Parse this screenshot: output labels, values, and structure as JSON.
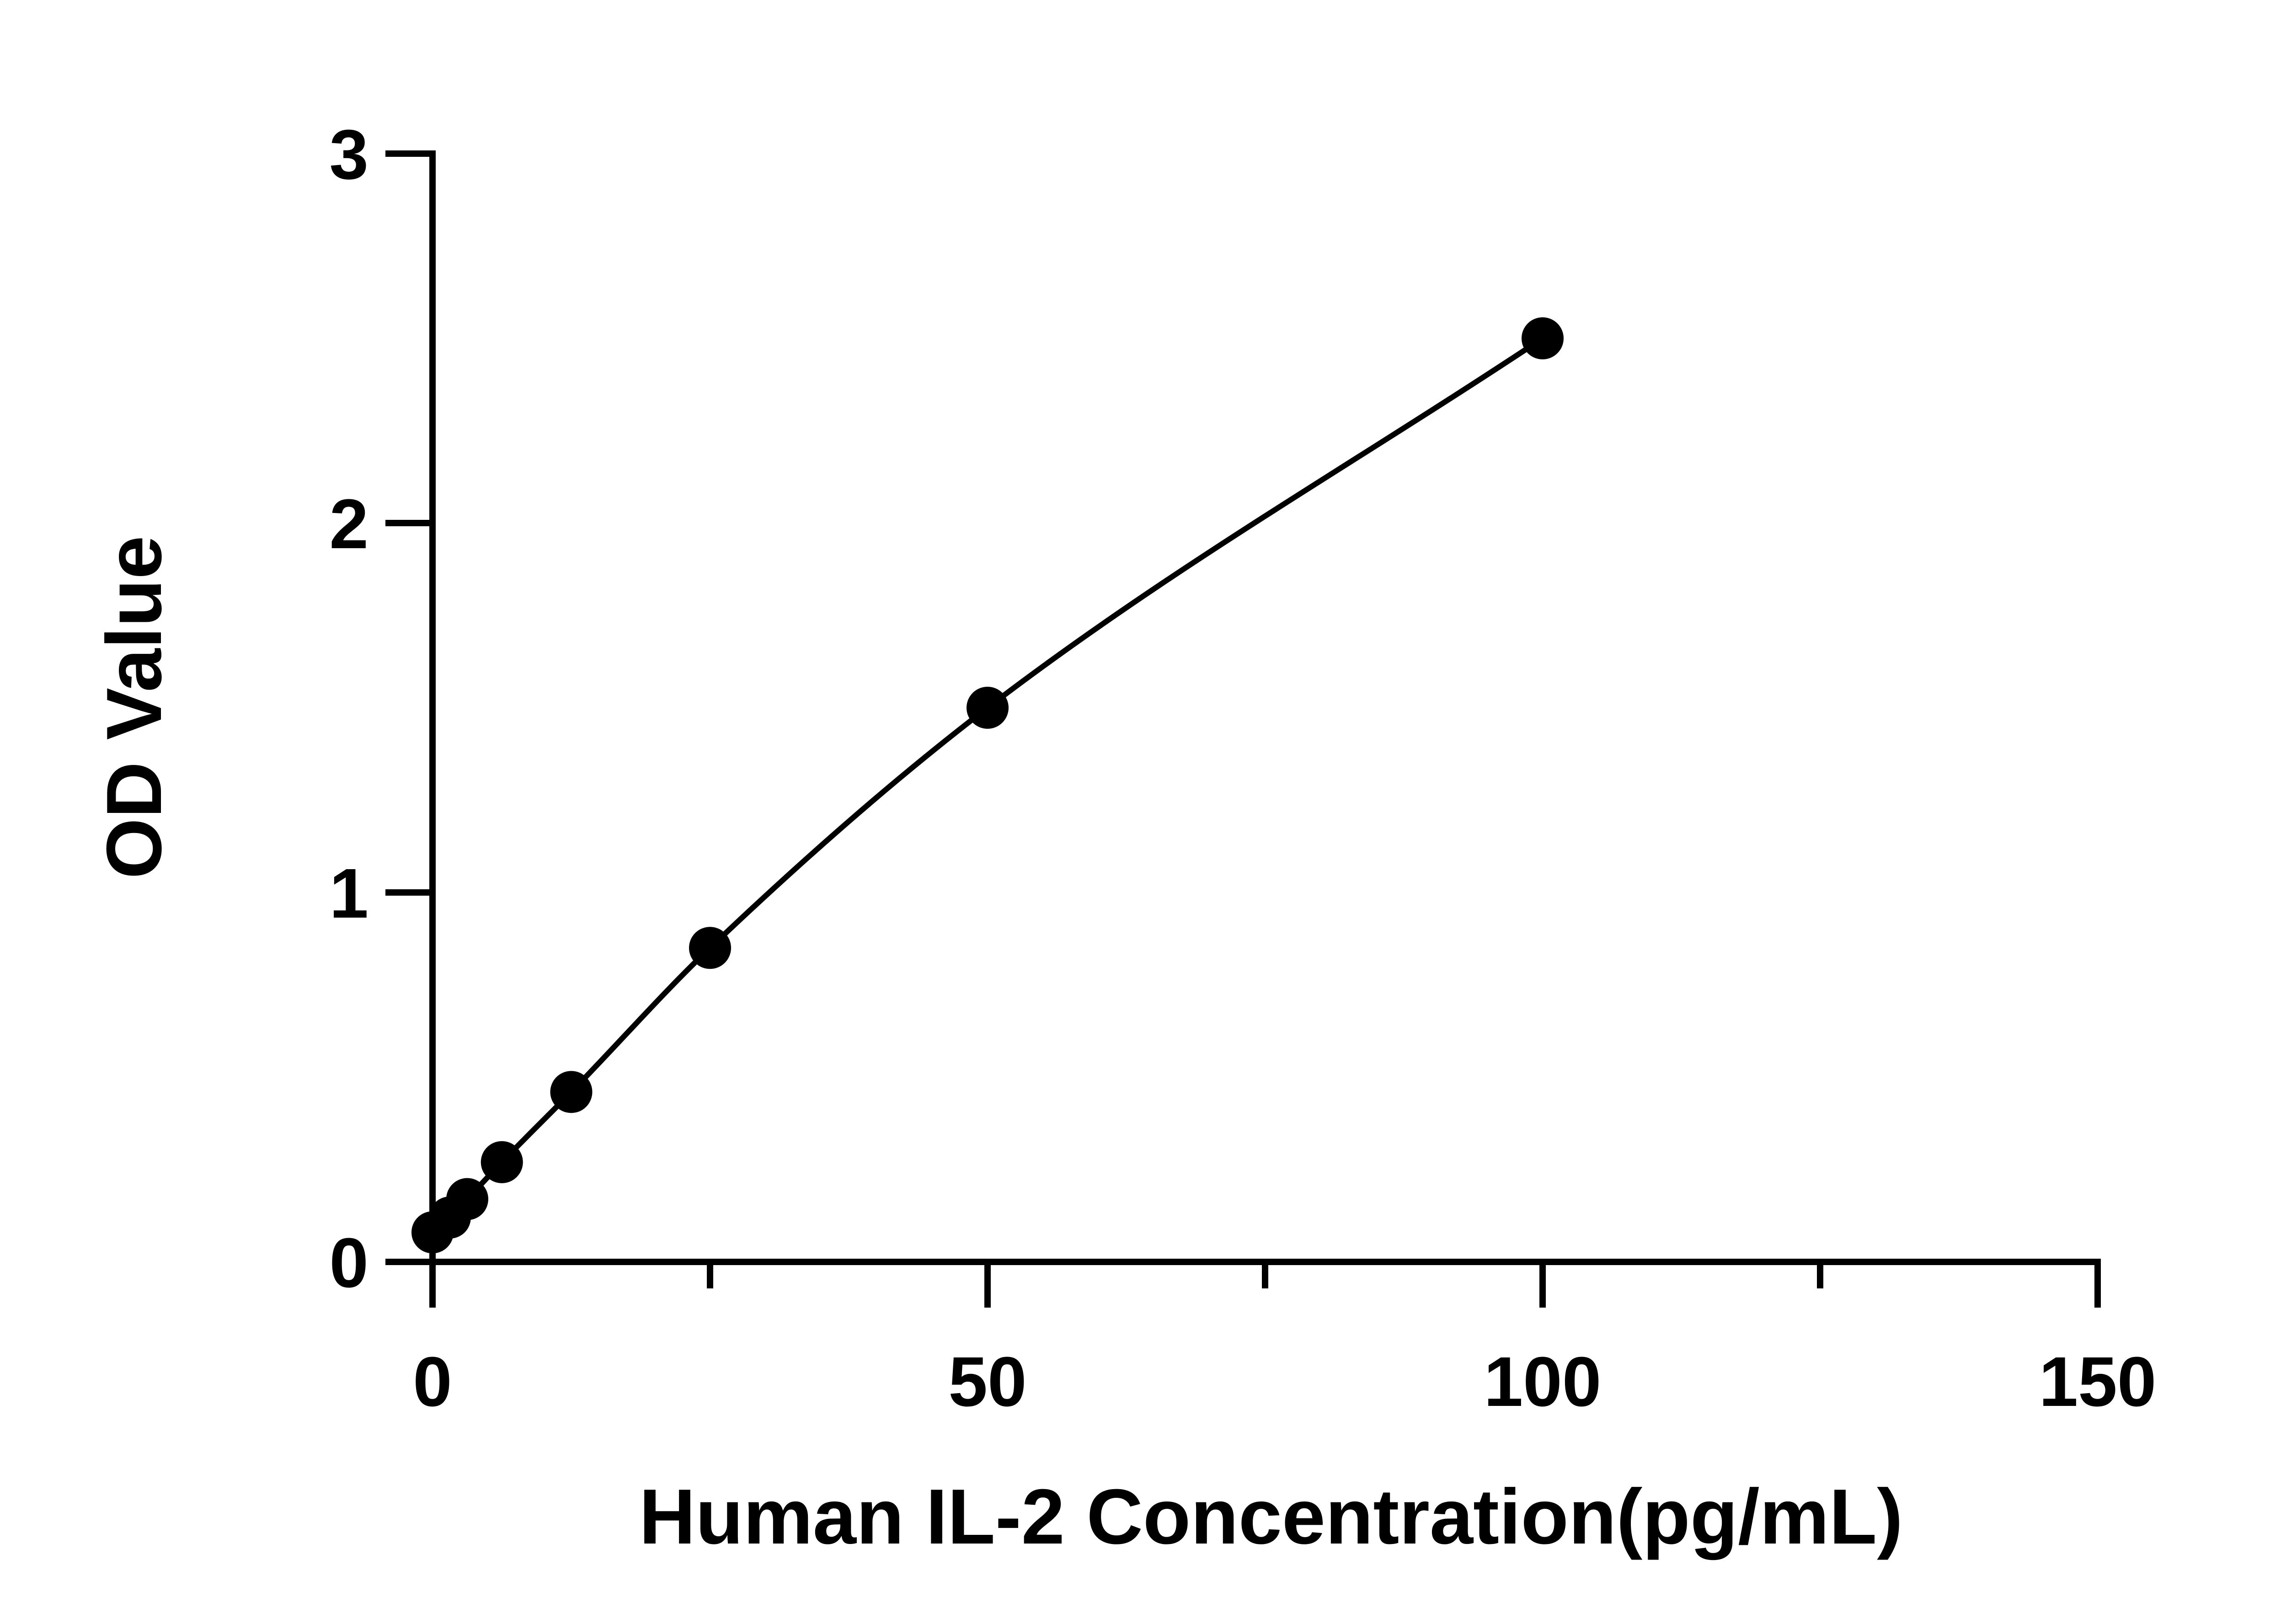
{
  "chart_data": {
    "type": "scatter",
    "title": "",
    "xlabel": "Human IL-2 Concentration(pg/mL)",
    "ylabel": "OD Value",
    "xlim": [
      0,
      150
    ],
    "ylim": [
      0,
      3
    ],
    "x_ticks": [
      0,
      50,
      100,
      150
    ],
    "x_tick_labels": [
      "0",
      "50",
      "100",
      "150"
    ],
    "x_minor_ticks": [
      25,
      75,
      125
    ],
    "y_ticks": [
      0,
      1,
      2,
      3
    ],
    "y_tick_labels": [
      "0",
      "1",
      "2",
      "3"
    ],
    "grid": false,
    "legend": "none",
    "colors": {
      "marker": "#000000",
      "line": "#000000",
      "axis": "#000000"
    },
    "series": [
      {
        "points": [
          {
            "x": 0,
            "y": 0.08
          },
          {
            "x": 1.56,
            "y": 0.12
          },
          {
            "x": 3.13,
            "y": 0.17
          },
          {
            "x": 6.25,
            "y": 0.27
          },
          {
            "x": 12.5,
            "y": 0.46
          },
          {
            "x": 25,
            "y": 0.85
          },
          {
            "x": 50,
            "y": 1.5
          },
          {
            "x": 100,
            "y": 2.5
          }
        ],
        "fit_curve": true
      }
    ]
  }
}
